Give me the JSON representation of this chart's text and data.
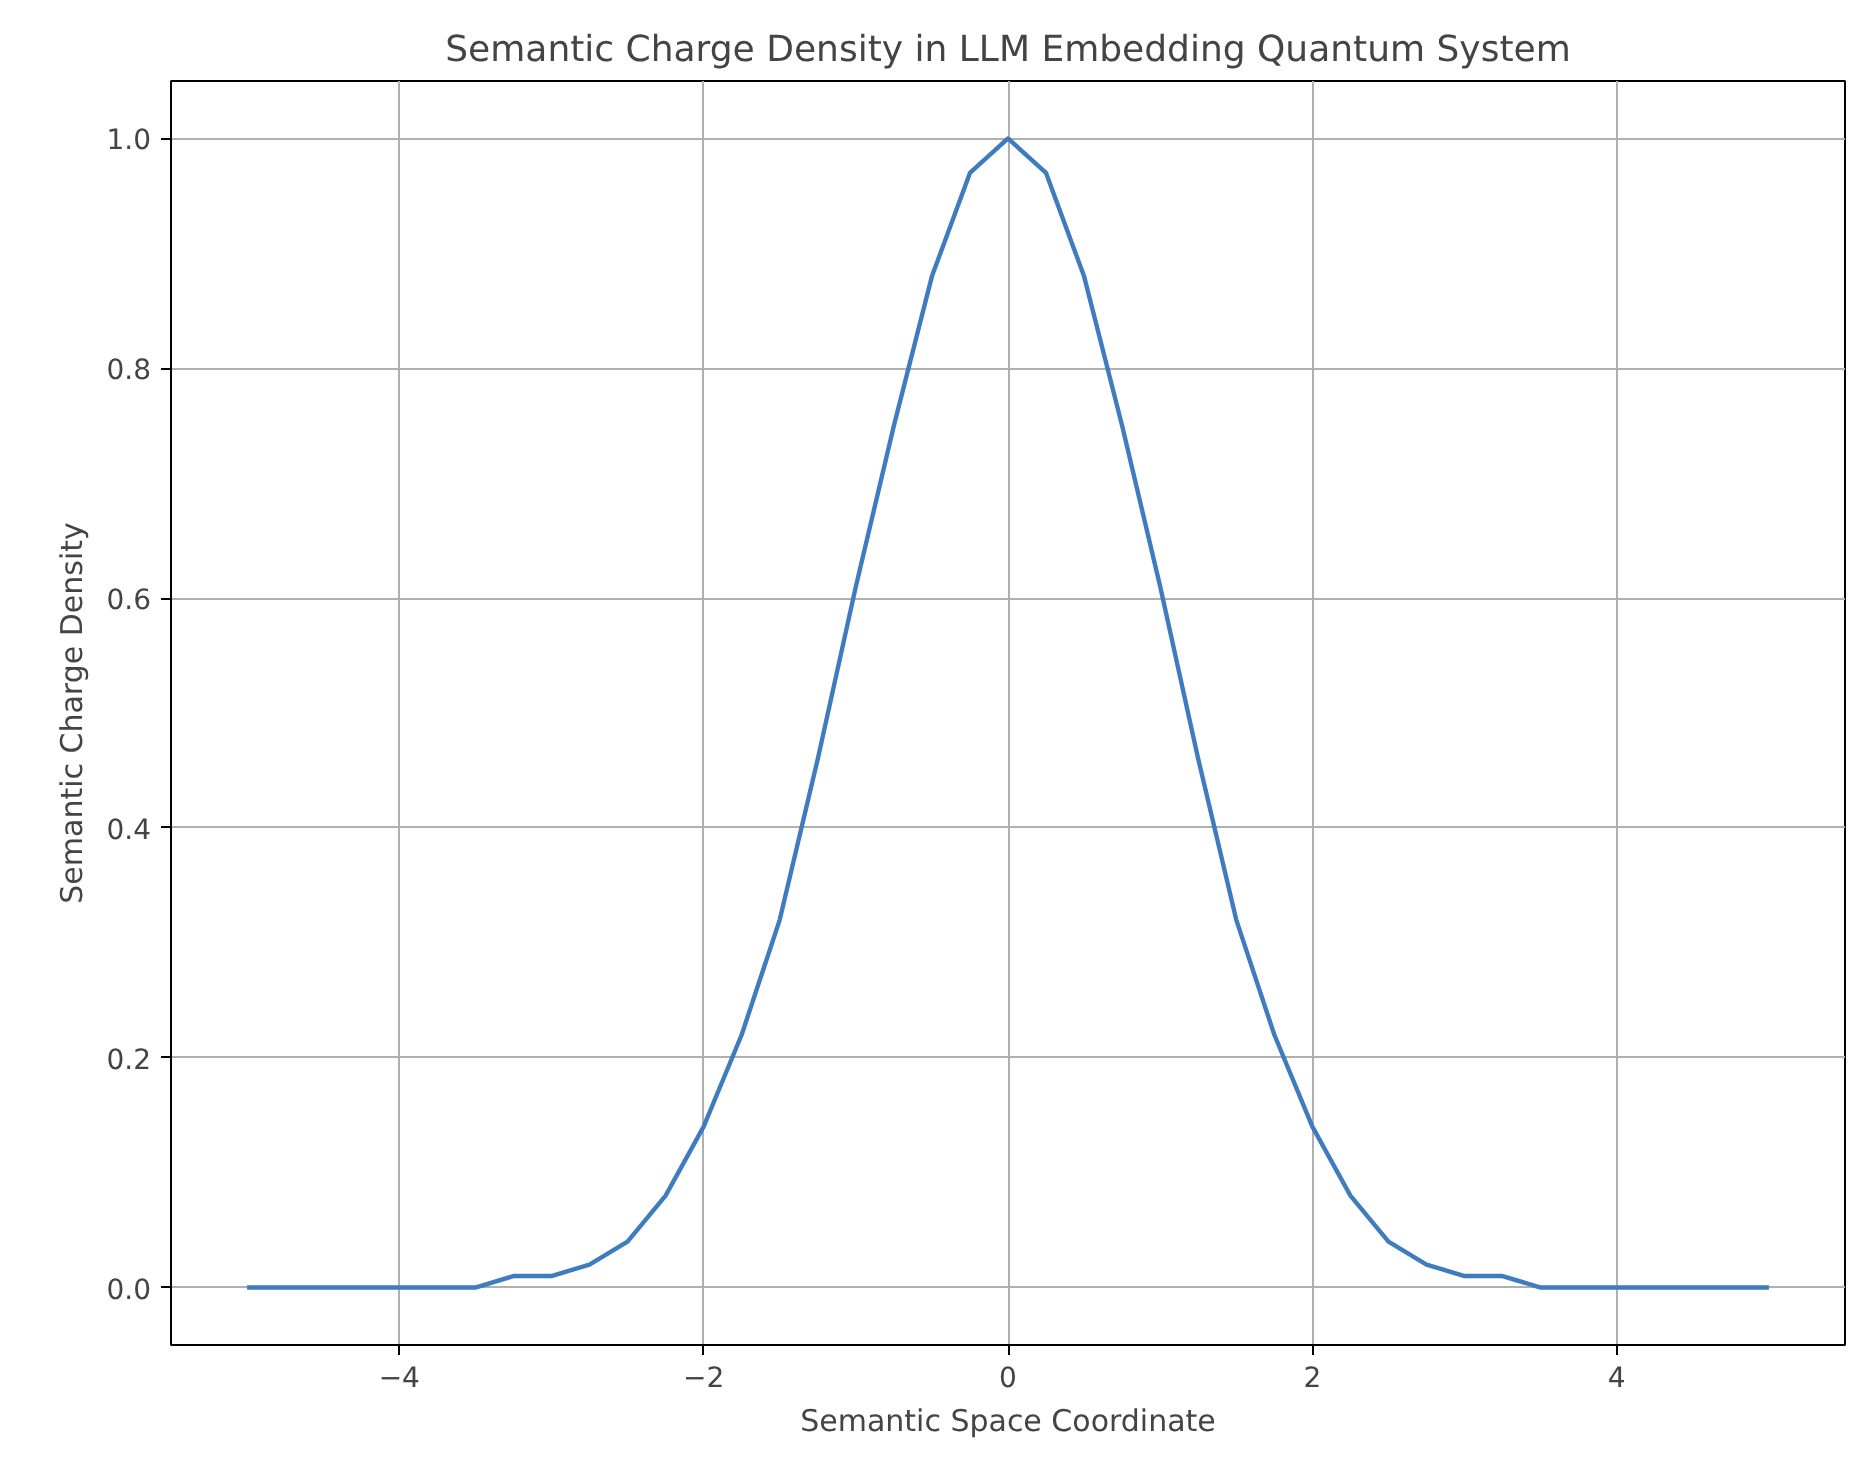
{
  "chart_data": {
    "type": "line",
    "title": "Semantic Charge Density in LLM Embedding Quantum System",
    "xlabel": "Semantic Space Coordinate",
    "ylabel": "Semantic Charge Density",
    "x": [
      -5,
      -4.75,
      -4.5,
      -4.25,
      -4,
      -3.75,
      -3.5,
      -3.25,
      -3,
      -2.75,
      -2.5,
      -2.25,
      -2,
      -1.75,
      -1.5,
      -1.25,
      -1,
      -0.75,
      -0.5,
      -0.25,
      0,
      0.25,
      0.5,
      0.75,
      1,
      1.25,
      1.5,
      1.75,
      2,
      2.25,
      2.5,
      2.75,
      3,
      3.25,
      3.5,
      3.75,
      4,
      4.25,
      4.5,
      4.75,
      5
    ],
    "series": [
      {
        "color": "#3f7bbf",
        "values": [
          0,
          0,
          0,
          0,
          0,
          0,
          0,
          0.01,
          0.01,
          0.02,
          0.04,
          0.08,
          0.14,
          0.22,
          0.32,
          0.46,
          0.61,
          0.75,
          0.88,
          0.97,
          1.0,
          0.97,
          0.88,
          0.75,
          0.61,
          0.46,
          0.32,
          0.22,
          0.14,
          0.08,
          0.04,
          0.02,
          0.01,
          0.01,
          0,
          0,
          0,
          0,
          0,
          0,
          0
        ]
      }
    ],
    "xlim": [
      -5.5,
      5.5
    ],
    "ylim": [
      -0.05,
      1.05
    ],
    "xticks": [
      {
        "value": -4,
        "label": "−4"
      },
      {
        "value": -2,
        "label": "−2"
      },
      0,
      2,
      4
    ],
    "yticks": [
      {
        "value": 0,
        "label": "0.0"
      },
      0.2,
      0.4,
      0.6,
      0.8,
      {
        "value": 1,
        "label": "1.0"
      }
    ],
    "grid": true,
    "marker": "none",
    "line_style": "solid"
  }
}
